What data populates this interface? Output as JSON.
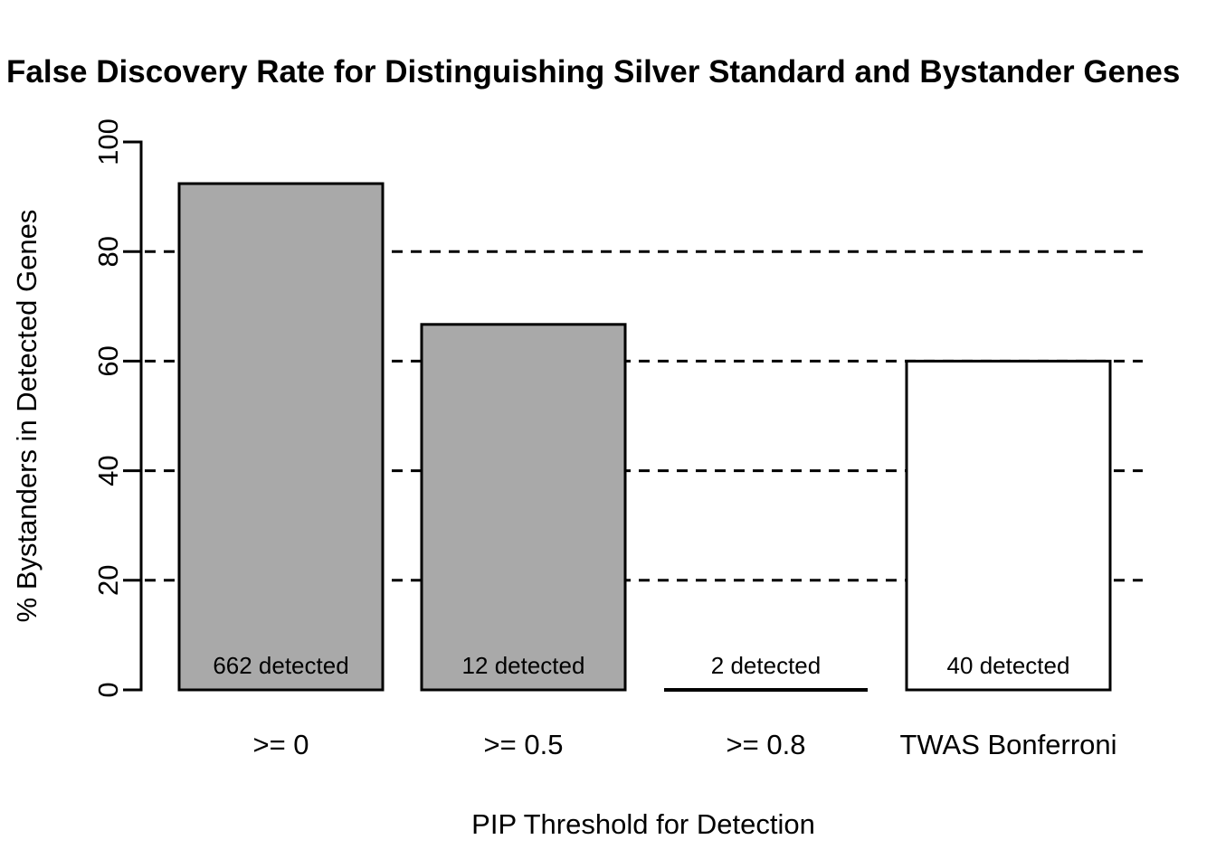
{
  "chart_data": {
    "type": "bar",
    "title": "False Discovery Rate for Distinguishing Silver Standard and Bystander Genes",
    "xlabel": "PIP Threshold for Detection",
    "ylabel": "% Bystanders in Detected Genes",
    "categories": [
      ">= 0",
      ">= 0.5",
      ">= 0.8",
      "TWAS Bonferroni"
    ],
    "values": [
      92.4,
      66.7,
      0,
      60
    ],
    "bar_labels": [
      "662 detected",
      "12 detected",
      "2 detected",
      "40 detected"
    ],
    "bar_fills": [
      "#a9a9a9",
      "#a9a9a9",
      "none",
      "#ffffff"
    ],
    "yticks": [
      0,
      20,
      40,
      60,
      80,
      100
    ],
    "gridlines": [
      20,
      40,
      60,
      80
    ],
    "ylim": [
      0,
      100
    ],
    "grid_style": "dashed",
    "legend": "none"
  },
  "colors": {
    "background": "#ffffff",
    "foreground": "#000000",
    "bar_gray": "#a9a9a9"
  }
}
